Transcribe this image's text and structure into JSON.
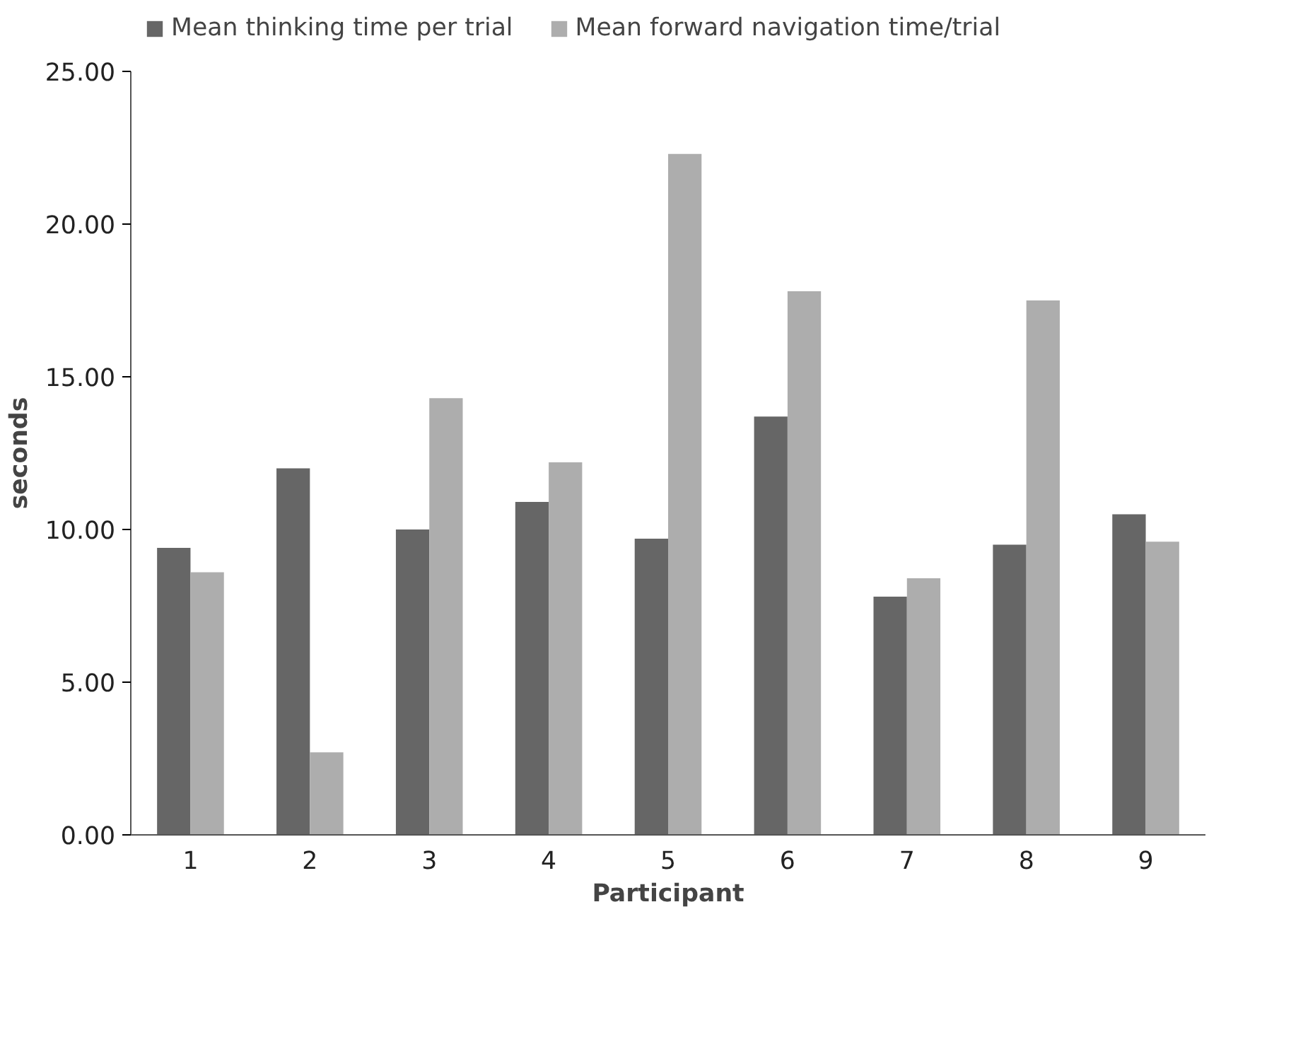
{
  "chart_data": {
    "type": "bar",
    "xlabel": "Participant",
    "ylabel": "seconds",
    "categories": [
      "1",
      "2",
      "3",
      "4",
      "5",
      "6",
      "7",
      "8",
      "9"
    ],
    "series": [
      {
        "name": "Mean thinking time per trial",
        "color": "#666666",
        "values": [
          9.4,
          12.0,
          10.0,
          10.9,
          9.7,
          13.7,
          7.8,
          9.5,
          10.5
        ]
      },
      {
        "name": "Mean forward navigation time/trial",
        "color": "#adadad",
        "values": [
          8.6,
          2.7,
          14.3,
          12.2,
          22.3,
          17.8,
          8.4,
          17.5,
          9.6
        ]
      }
    ],
    "ylim": [
      0,
      25
    ],
    "yticks": [
      {
        "value": 0,
        "label": "0.00"
      },
      {
        "value": 5,
        "label": "5.00"
      },
      {
        "value": 10,
        "label": "10.00"
      },
      {
        "value": 15,
        "label": "15.00"
      },
      {
        "value": 20,
        "label": "20.00"
      },
      {
        "value": 25,
        "label": "25.00"
      }
    ],
    "grid": false,
    "legend": "top"
  }
}
